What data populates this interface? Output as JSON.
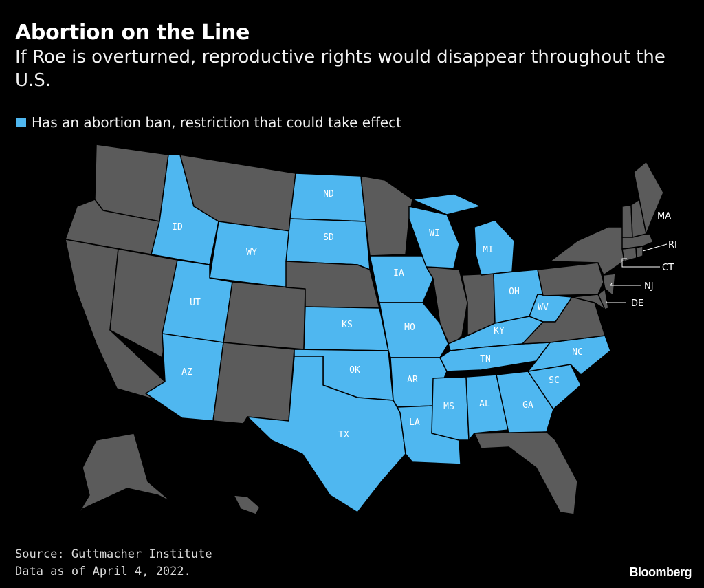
{
  "header": {
    "title": "Abortion on the Line",
    "subtitle": "If Roe is overturned, reproductive rights would disappear throughout the U.S."
  },
  "legend": {
    "label": "Has an abortion ban, restriction that could take effect",
    "color": "#4fb7f0"
  },
  "colors": {
    "restricted": "#4fb7f0",
    "other": "#5b5b5b",
    "background": "#000000",
    "border": "#000000"
  },
  "map": {
    "restricted_states": [
      "ID",
      "UT",
      "AZ",
      "WY",
      "ND",
      "SD",
      "KS",
      "OK",
      "TX",
      "IA",
      "MO",
      "AR",
      "LA",
      "MS",
      "AL",
      "GA",
      "SC",
      "NC",
      "TN",
      "KY",
      "OH",
      "WV",
      "WI",
      "MI"
    ],
    "other_states": [
      "WA",
      "OR",
      "CA",
      "NV",
      "MT",
      "CO",
      "NM",
      "NE",
      "MN",
      "IL",
      "IN",
      "FL",
      "VA",
      "PA",
      "NY",
      "ME",
      "VT",
      "NH",
      "MA",
      "RI",
      "CT",
      "NJ",
      "DE",
      "MD",
      "AK",
      "HI"
    ],
    "labels": {
      "ID": "ID",
      "UT": "UT",
      "AZ": "AZ",
      "WY": "WY",
      "ND": "ND",
      "SD": "SD",
      "KS": "KS",
      "OK": "OK",
      "TX": "TX",
      "IA": "IA",
      "MO": "MO",
      "AR": "AR",
      "LA": "LA",
      "MS": "MS",
      "AL": "AL",
      "GA": "GA",
      "SC": "SC",
      "NC": "NC",
      "TN": "TN",
      "KY": "KY",
      "OH": "OH",
      "WV": "WV",
      "WI": "WI",
      "MI": "MI",
      "MA": "MA",
      "RI": "RI",
      "CT": "CT",
      "NJ": "NJ",
      "DE": "DE"
    }
  },
  "footer": {
    "source": "Source: Guttmacher Institute",
    "date": "Data as of April 4, 2022."
  },
  "brand": "Bloomberg"
}
